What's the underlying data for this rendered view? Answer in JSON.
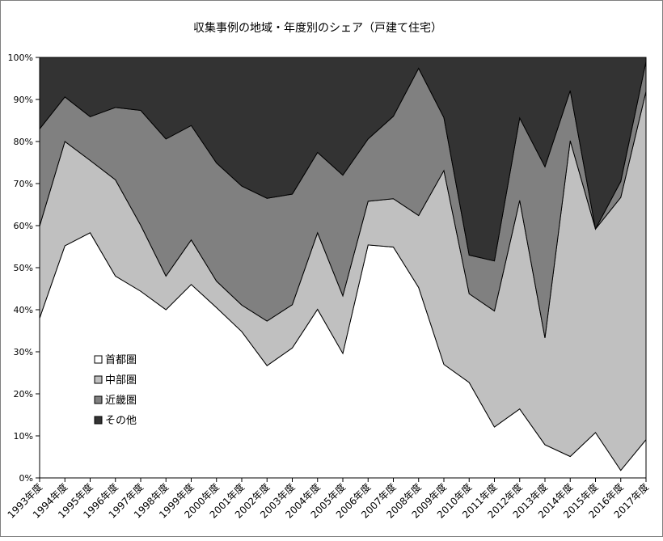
{
  "chart_data": {
    "type": "area",
    "stacked": true,
    "title": "収集事例の地域・年度別のシェア（戸建て住宅）",
    "categories": [
      "1993年度",
      "1994年度",
      "1995年度",
      "1996年度",
      "1997年度",
      "1998年度",
      "1999年度",
      "2000年度",
      "2001年度",
      "2002年度",
      "2003年度",
      "2004年度",
      "2005年度",
      "2006年度",
      "2007年度",
      "2008年度",
      "2009年度",
      "2010年度",
      "2011年度",
      "2012年度",
      "2013年度",
      "2014年度",
      "2015年度",
      "2016年度",
      "2017年度"
    ],
    "y_ticks": [
      "0%",
      "10%",
      "20%",
      "30%",
      "40%",
      "50%",
      "60%",
      "70%",
      "80%",
      "90%",
      "100%"
    ],
    "ylim": [
      0,
      100
    ],
    "unit": "%",
    "legend_position": "left-bottom",
    "grid": false,
    "series": [
      {
        "name": "首都圏",
        "color": "#ffffff",
        "values": [
          38.0,
          55.2,
          58.3,
          48.0,
          44.4,
          40.0,
          46.0,
          40.5,
          34.8,
          26.7,
          30.9,
          40.1,
          29.6,
          55.4,
          54.9,
          45.3,
          27.0,
          22.7,
          12.1,
          16.4,
          7.9,
          5.1,
          10.8,
          1.8,
          9.1
        ]
      },
      {
        "name": "中部圏",
        "color": "#c0c0c0",
        "values": [
          21.9,
          24.8,
          17.2,
          22.9,
          15.7,
          8.0,
          10.6,
          6.3,
          6.3,
          10.6,
          10.3,
          18.2,
          13.7,
          10.4,
          11.5,
          17.1,
          46.1,
          21.1,
          27.6,
          49.6,
          25.4,
          75.1,
          48.4,
          64.9,
          82.8
        ]
      },
      {
        "name": "近畿圏",
        "color": "#808080",
        "values": [
          23.1,
          10.6,
          10.4,
          17.2,
          27.3,
          32.6,
          27.2,
          28.1,
          28.3,
          29.2,
          26.3,
          19.1,
          28.7,
          14.8,
          19.6,
          35.0,
          12.6,
          9.2,
          11.9,
          19.6,
          40.7,
          11.9,
          0.0,
          3.8,
          7.1
        ]
      },
      {
        "name": "その他",
        "color": "#333333",
        "values": [
          17.0,
          9.4,
          14.1,
          11.9,
          12.6,
          19.4,
          16.2,
          25.1,
          30.6,
          33.5,
          32.5,
          22.6,
          28.0,
          19.4,
          14.0,
          2.6,
          14.3,
          47.0,
          48.4,
          14.4,
          26.0,
          7.9,
          40.8,
          29.5,
          1.0
        ]
      }
    ]
  }
}
